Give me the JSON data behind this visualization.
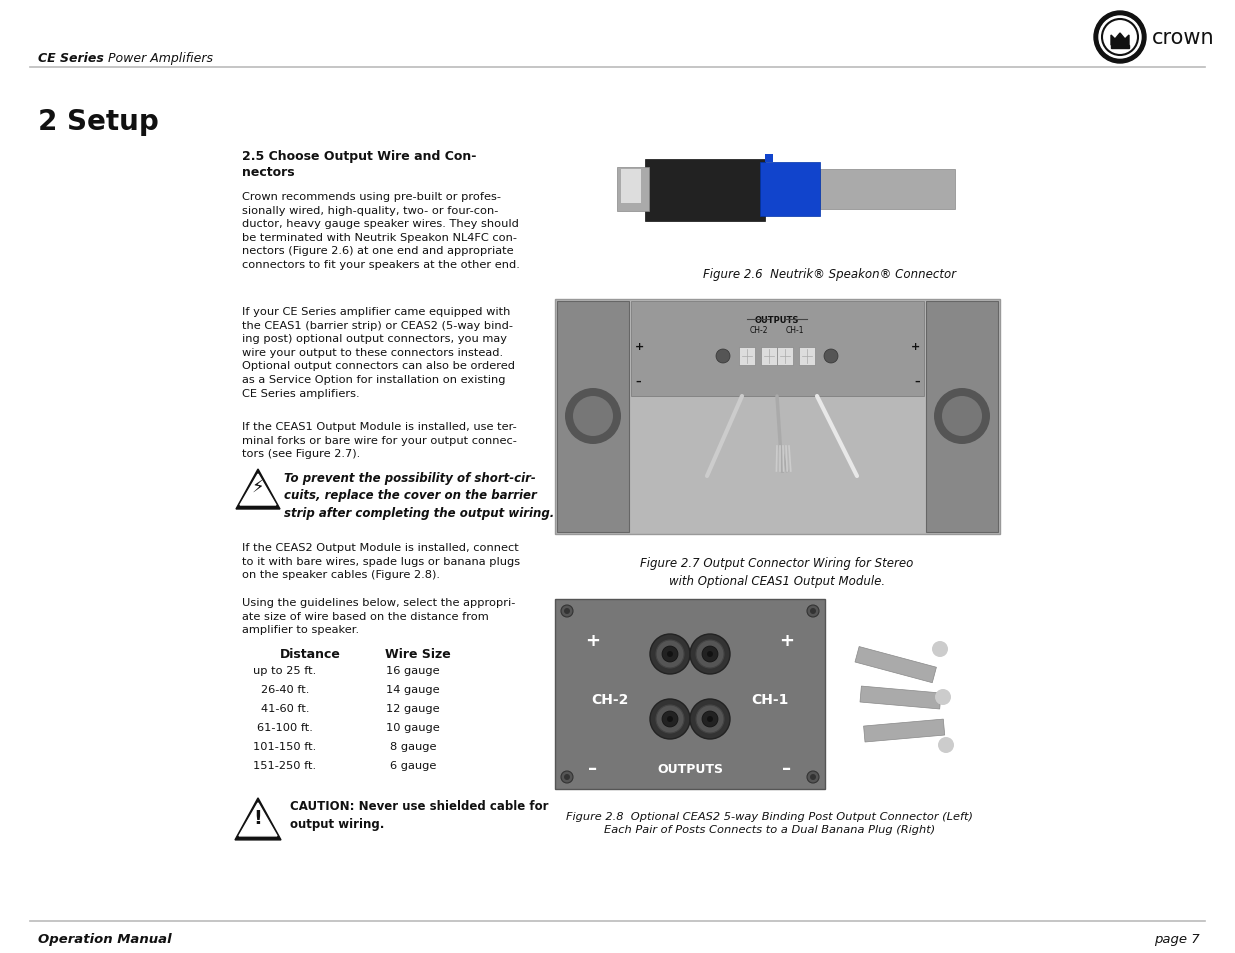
{
  "page_bg": "#ffffff",
  "header_text_bold": "CE Series",
  "header_text_normal": " Power Amplifiers",
  "header_line_color": "#bbbbbb",
  "logo_text": "crown",
  "section_title": "2 Setup",
  "subsection_title": "2.5 Choose Output Wire and Con-\nnectors",
  "para1": "Crown recommends using pre-built or profes-\nsionally wired, high-quality, two- or four-con-\nductor, heavy gauge speaker wires. They should\nbe terminated with Neutrik Speakon NL4FC con-\nnectors (Figure 2.6) at one end and appropriate\nconnectors to fit your speakers at the other end.",
  "para2": "If your CE Series amplifier came equipped with\nthe CEAS1 (barrier strip) or CEAS2 (5-way bind-\ning post) optional output connectors, you may\nwire your output to these connectors instead.\nOptional output connectors can also be ordered\nas a Service Option for installation on existing\nCE Series amplifiers.",
  "para3": "If the CEAS1 Output Module is installed, use ter-\nminal forks or bare wire for your output connec-\ntors (see Figure 2.7).",
  "warning_text": "To prevent the possibility of short-cir-\ncuits, replace the cover on the barrier\nstrip after completing the output wiring.",
  "para4": "If the CEAS2 Output Module is installed, connect\nto it with bare wires, spade lugs or banana plugs\non the speaker cables (Figure 2.8).",
  "para5": "Using the guidelines below, select the appropri-\nate size of wire based on the distance from\namplifier to speaker.",
  "table_header": [
    "Distance",
    "Wire Size"
  ],
  "table_rows": [
    [
      "up to 25 ft.",
      "16 gauge"
    ],
    [
      "26-40 ft.",
      "14 gauge"
    ],
    [
      "41-60 ft.",
      "12 gauge"
    ],
    [
      "61-100 ft.",
      "10 gauge"
    ],
    [
      "101-150 ft.",
      "8 gauge"
    ],
    [
      "151-250 ft.",
      "6 gauge"
    ]
  ],
  "caution_text_bold": "CAUTION: Never use shielded cable for\noutput wiring.",
  "fig26_caption": "Figure 2.6  Neutrik® Speakon® Connector",
  "fig27_caption": "Figure 2.7 Output Connector Wiring for Stereo\nwith Optional CEAS1 Output Module.",
  "fig28_caption": "Figure 2.8  Optional CEAS2 5-way Binding Post Output Connector (Left)\nEach Pair of Posts Connects to a Dual Banana Plug (Right)",
  "footer_left": "Operation Manual",
  "footer_right": "page 7"
}
